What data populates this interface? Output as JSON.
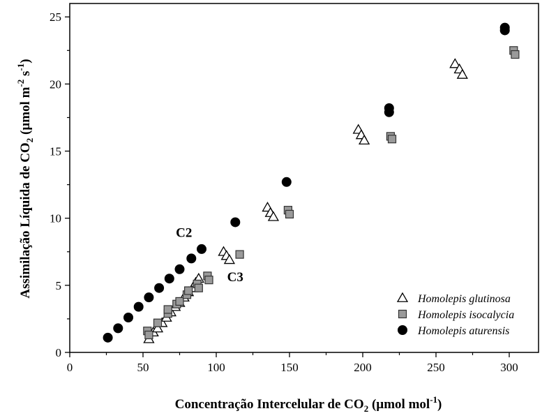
{
  "chart_data": {
    "type": "scatter",
    "title": "",
    "xlabel": {
      "main": "Concentração Intercelular de CO",
      "sub": "2",
      "unit_pre": " (µmol mol",
      "sup": "-1",
      "unit_post": ")"
    },
    "ylabel": {
      "main": "Assimilação Líquida de CO",
      "sub": "2",
      "unit_pre": " (µmol m",
      "sup1": "-2",
      "mid": " s",
      "sup2": "-1",
      "unit_post": ")"
    },
    "xlim": [
      0,
      320
    ],
    "ylim": [
      0,
      26
    ],
    "x_ticks": [
      "0",
      "50",
      "100",
      "150",
      "200",
      "250",
      "300"
    ],
    "y_ticks": [
      "0",
      "5",
      "10",
      "15",
      "20",
      "25"
    ],
    "grid": false,
    "legend_position": "bottom-right",
    "annotations": [
      {
        "text": "C2",
        "x": 78,
        "y": 8.6
      },
      {
        "text": "C3",
        "x": 113,
        "y": 5.3
      }
    ],
    "series": [
      {
        "name": "Homolepis glutinosa",
        "marker": "triangle-open",
        "color": "#000000",
        "points": [
          [
            54,
            1.0
          ],
          [
            57,
            1.5
          ],
          [
            60,
            1.8
          ],
          [
            63,
            2.2
          ],
          [
            66,
            2.6
          ],
          [
            69,
            3.0
          ],
          [
            72,
            3.4
          ],
          [
            75,
            3.7
          ],
          [
            78,
            4.1
          ],
          [
            81,
            4.5
          ],
          [
            84,
            4.8
          ],
          [
            86,
            5.2
          ],
          [
            88,
            5.5
          ],
          [
            105,
            7.5
          ],
          [
            107,
            7.2
          ],
          [
            109,
            6.9
          ],
          [
            135,
            10.8
          ],
          [
            137,
            10.4
          ],
          [
            139,
            10.1
          ],
          [
            197,
            16.6
          ],
          [
            199,
            16.2
          ],
          [
            201,
            15.8
          ],
          [
            263,
            21.5
          ],
          [
            266,
            21.1
          ],
          [
            268,
            20.7
          ]
        ]
      },
      {
        "name": "Homolepis isocalycia",
        "marker": "square",
        "color": "#9a9a9a",
        "points": [
          [
            53,
            1.6
          ],
          [
            54,
            1.3
          ],
          [
            60,
            2.2
          ],
          [
            67,
            2.9
          ],
          [
            67,
            3.2
          ],
          [
            73,
            3.6
          ],
          [
            75,
            3.8
          ],
          [
            80,
            4.3
          ],
          [
            81,
            4.6
          ],
          [
            87,
            5.1
          ],
          [
            88,
            4.8
          ],
          [
            94,
            5.7
          ],
          [
            95,
            5.4
          ],
          [
            116,
            7.3
          ],
          [
            149,
            10.6
          ],
          [
            150,
            10.3
          ],
          [
            219,
            16.1
          ],
          [
            220,
            15.9
          ],
          [
            303,
            22.5
          ],
          [
            304,
            22.2
          ]
        ]
      },
      {
        "name": "Homolepis aturensis",
        "marker": "circle",
        "color": "#000000",
        "points": [
          [
            26,
            1.1
          ],
          [
            33,
            1.8
          ],
          [
            40,
            2.6
          ],
          [
            47,
            3.4
          ],
          [
            54,
            4.1
          ],
          [
            61,
            4.8
          ],
          [
            68,
            5.5
          ],
          [
            75,
            6.2
          ],
          [
            83,
            7.0
          ],
          [
            90,
            7.7
          ],
          [
            113,
            9.7
          ],
          [
            148,
            12.7
          ],
          [
            218,
            18.2
          ],
          [
            218,
            17.9
          ],
          [
            297,
            24.2
          ],
          [
            297,
            24.0
          ]
        ]
      }
    ]
  }
}
